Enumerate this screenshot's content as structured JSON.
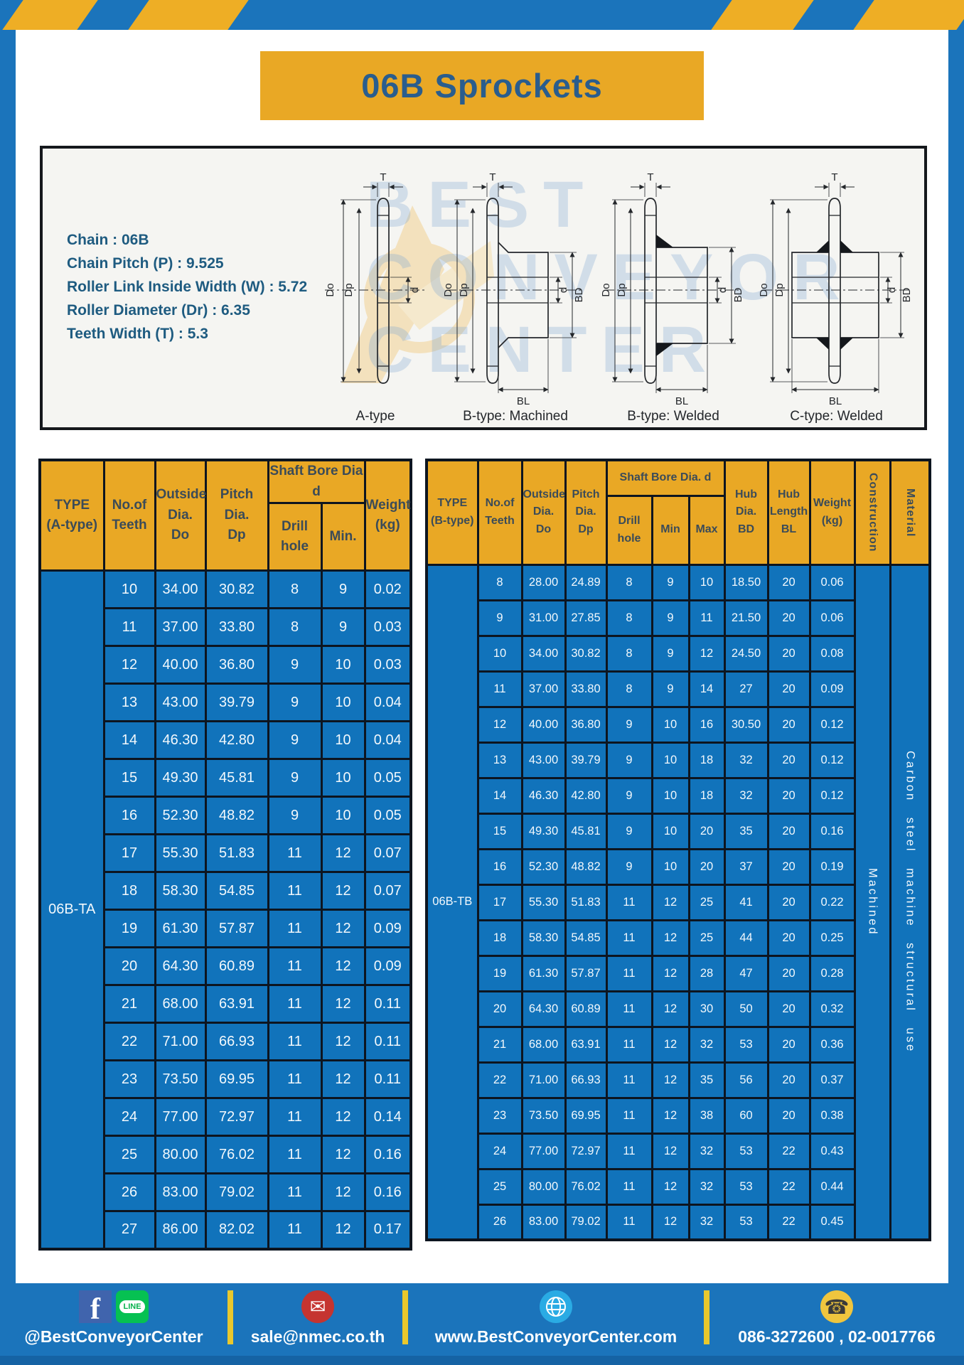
{
  "header": {
    "title": "06B Sprockets"
  },
  "specs": {
    "lines": [
      "Chain : 06B",
      "Chain Pitch (P) : 9.525",
      "Roller Link Inside Width (W) : 5.72",
      "Roller Diameter (Dr) : 6.35",
      "Teeth Width (T) : 5.3"
    ]
  },
  "diagram": {
    "watermark_lines": [
      "BEST",
      "CONVEYOR",
      "CENTER"
    ],
    "figures": [
      {
        "caption": "A-type"
      },
      {
        "caption": "B-type: Machined"
      },
      {
        "caption": "B-type: Welded"
      },
      {
        "caption": "C-type: Welded"
      }
    ],
    "dim_labels": {
      "t": "T",
      "do": "Do",
      "dp": "Dp",
      "d": "d",
      "bd": "BD",
      "bl": "BL"
    }
  },
  "table_a": {
    "headers": {
      "type": "TYPE\n(A-type)",
      "teeth": "No.of\nTeeth",
      "outside": "Outside\nDia.\nDo",
      "pitch": "Pitch Dia.\nDp",
      "shaft_bore": "Shaft Bore Dia d",
      "drill": "Drill hole",
      "min": "Min.",
      "weight": "Weight\n(kg)"
    },
    "type_label": "06B-TA",
    "rows": [
      [
        "10",
        "34.00",
        "30.82",
        "8",
        "9",
        "0.02"
      ],
      [
        "11",
        "37.00",
        "33.80",
        "8",
        "9",
        "0.03"
      ],
      [
        "12",
        "40.00",
        "36.80",
        "9",
        "10",
        "0.03"
      ],
      [
        "13",
        "43.00",
        "39.79",
        "9",
        "10",
        "0.04"
      ],
      [
        "14",
        "46.30",
        "42.80",
        "9",
        "10",
        "0.04"
      ],
      [
        "15",
        "49.30",
        "45.81",
        "9",
        "10",
        "0.05"
      ],
      [
        "16",
        "52.30",
        "48.82",
        "9",
        "10",
        "0.05"
      ],
      [
        "17",
        "55.30",
        "51.83",
        "11",
        "12",
        "0.07"
      ],
      [
        "18",
        "58.30",
        "54.85",
        "11",
        "12",
        "0.07"
      ],
      [
        "19",
        "61.30",
        "57.87",
        "11",
        "12",
        "0.09"
      ],
      [
        "20",
        "64.30",
        "60.89",
        "11",
        "12",
        "0.09"
      ],
      [
        "21",
        "68.00",
        "63.91",
        "11",
        "12",
        "0.11"
      ],
      [
        "22",
        "71.00",
        "66.93",
        "11",
        "12",
        "0.11"
      ],
      [
        "23",
        "73.50",
        "69.95",
        "11",
        "12",
        "0.11"
      ],
      [
        "24",
        "77.00",
        "72.97",
        "11",
        "12",
        "0.14"
      ],
      [
        "25",
        "80.00",
        "76.02",
        "11",
        "12",
        "0.16"
      ],
      [
        "26",
        "83.00",
        "79.02",
        "11",
        "12",
        "0.16"
      ],
      [
        "27",
        "86.00",
        "82.02",
        "11",
        "12",
        "0.17"
      ]
    ]
  },
  "table_b": {
    "headers": {
      "type": "TYPE\n(B-type)",
      "teeth": "No.of\nTeeth",
      "outside": "Outside\nDia.\nDo",
      "pitch": "Pitch\nDia.\nDp",
      "shaft_bore": "Shaft Bore Dia. d",
      "drill": "Drill hole",
      "min": "Min",
      "max": "Max",
      "hub_dia": "Hub\nDia.\nBD",
      "hub_len": "Hub\nLength\nBL",
      "weight": "Weight\n(kg)",
      "construction": "Construction",
      "material": "Material"
    },
    "type_label": "06B-TB",
    "construction_value": "Machined",
    "material_value": "Carbon steel machine structural use",
    "rows": [
      [
        "8",
        "28.00",
        "24.89",
        "8",
        "9",
        "10",
        "18.50",
        "20",
        "0.06"
      ],
      [
        "9",
        "31.00",
        "27.85",
        "8",
        "9",
        "11",
        "21.50",
        "20",
        "0.06"
      ],
      [
        "10",
        "34.00",
        "30.82",
        "8",
        "9",
        "12",
        "24.50",
        "20",
        "0.08"
      ],
      [
        "11",
        "37.00",
        "33.80",
        "8",
        "9",
        "14",
        "27",
        "20",
        "0.09"
      ],
      [
        "12",
        "40.00",
        "36.80",
        "9",
        "10",
        "16",
        "30.50",
        "20",
        "0.12"
      ],
      [
        "13",
        "43.00",
        "39.79",
        "9",
        "10",
        "18",
        "32",
        "20",
        "0.12"
      ],
      [
        "14",
        "46.30",
        "42.80",
        "9",
        "10",
        "18",
        "32",
        "20",
        "0.12"
      ],
      [
        "15",
        "49.30",
        "45.81",
        "9",
        "10",
        "20",
        "35",
        "20",
        "0.16"
      ],
      [
        "16",
        "52.30",
        "48.82",
        "9",
        "10",
        "20",
        "37",
        "20",
        "0.19"
      ],
      [
        "17",
        "55.30",
        "51.83",
        "11",
        "12",
        "25",
        "41",
        "20",
        "0.22"
      ],
      [
        "18",
        "58.30",
        "54.85",
        "11",
        "12",
        "25",
        "44",
        "20",
        "0.25"
      ],
      [
        "19",
        "61.30",
        "57.87",
        "11",
        "12",
        "28",
        "47",
        "20",
        "0.28"
      ],
      [
        "20",
        "64.30",
        "60.89",
        "11",
        "12",
        "30",
        "50",
        "20",
        "0.32"
      ],
      [
        "21",
        "68.00",
        "63.91",
        "11",
        "12",
        "32",
        "53",
        "20",
        "0.36"
      ],
      [
        "22",
        "71.00",
        "66.93",
        "11",
        "12",
        "35",
        "56",
        "20",
        "0.37"
      ],
      [
        "23",
        "73.50",
        "69.95",
        "11",
        "12",
        "38",
        "60",
        "20",
        "0.38"
      ],
      [
        "24",
        "77.00",
        "72.97",
        "11",
        "12",
        "32",
        "53",
        "22",
        "0.43"
      ],
      [
        "25",
        "80.00",
        "76.02",
        "11",
        "12",
        "32",
        "53",
        "22",
        "0.44"
      ],
      [
        "26",
        "83.00",
        "79.02",
        "11",
        "12",
        "32",
        "53",
        "22",
        "0.45"
      ]
    ]
  },
  "footer": {
    "social_label": "@BestConveyorCenter",
    "email": "sale@nmec.co.th",
    "website": "www.BestConveyorCenter.com",
    "phones": "086-3272600 , 02-0017766",
    "glyphs": {
      "facebook": "f",
      "line": "LINE",
      "mail": "✉",
      "phone": "☎"
    }
  },
  "colors": {
    "frame_blue": "#1b74bb",
    "cell_blue": "#1173bb",
    "accent_yellow": "#e9a825",
    "header_text": "#3b4b58",
    "title_text": "#2a5d8d",
    "spec_text": "#1e5b80"
  }
}
